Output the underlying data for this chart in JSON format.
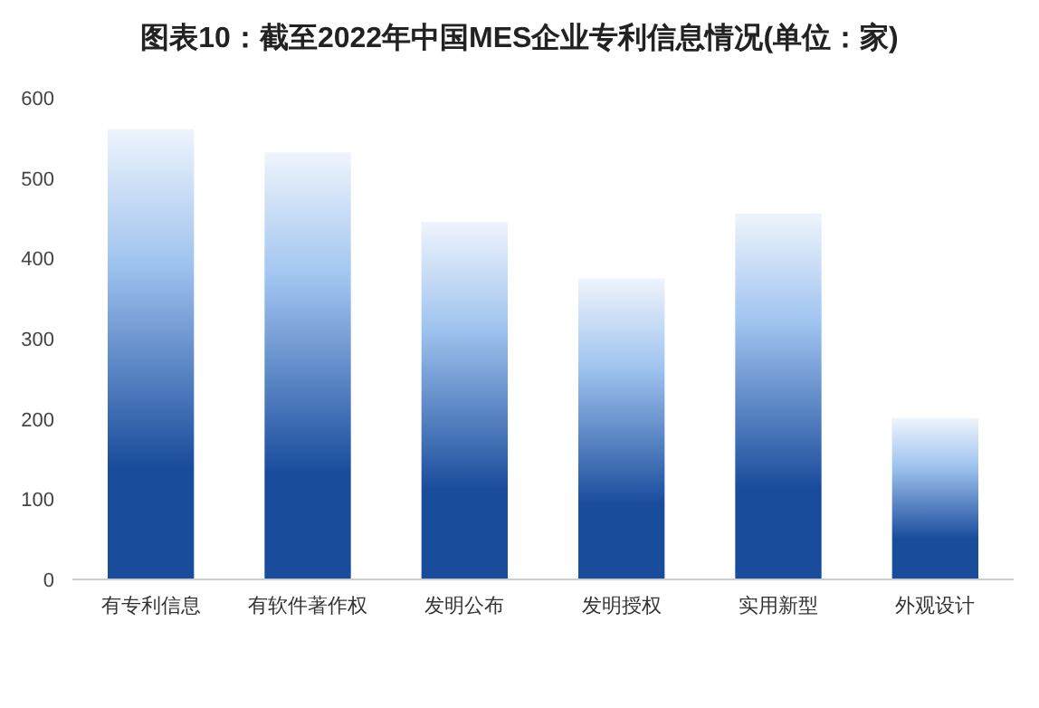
{
  "chart_data": {
    "type": "bar",
    "title": "图表10：截至2022年中国MES企业专利信息情况(单位：家)",
    "categories": [
      "有专利信息",
      "有软件著作权",
      "发明公布",
      "发明授权",
      "实用新型",
      "外观设计"
    ],
    "values": [
      561,
      532,
      445,
      375,
      456,
      201
    ],
    "color": "#1a4c9c",
    "ylim": [
      0,
      600
    ],
    "yticks": [
      0,
      100,
      200,
      300,
      400,
      500,
      600
    ],
    "grid": false
  }
}
